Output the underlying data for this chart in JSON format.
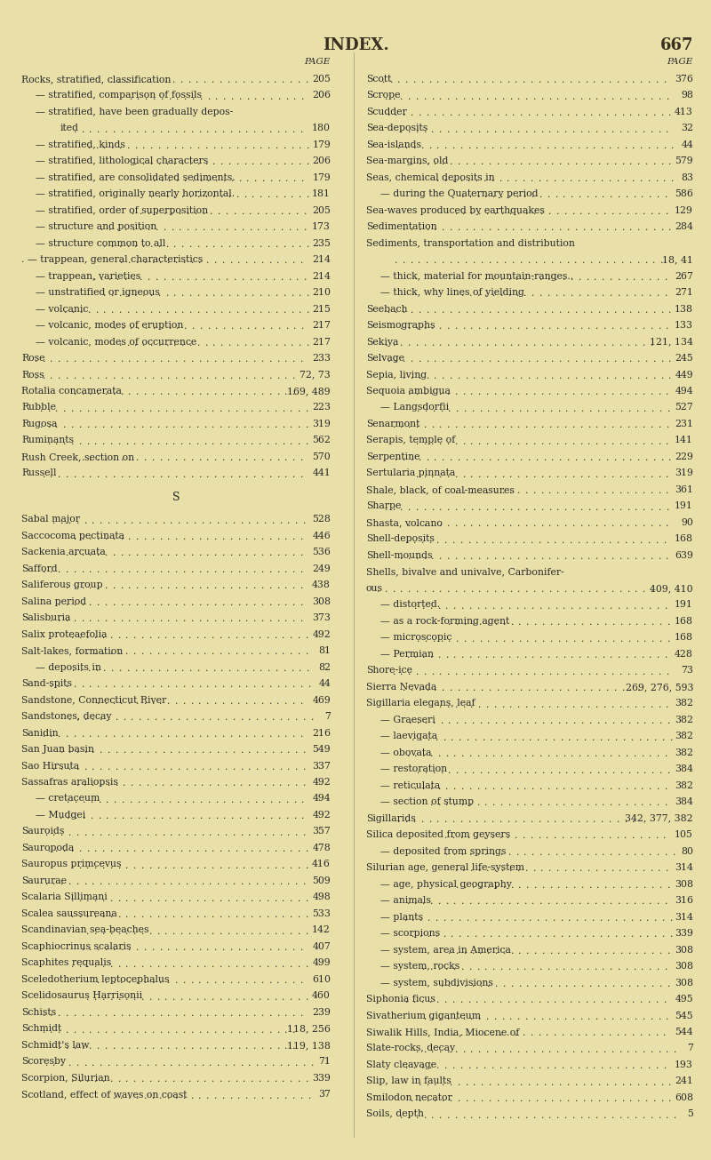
{
  "title": "INDEX.",
  "page_number": "667",
  "bg_color": "#e8e0a8",
  "text_color": "#2a2a2a",
  "title_color": "#3a3020",
  "left_column": [
    [
      "PAGE",
      "",
      true
    ],
    [
      "Rocks, stratified, classification",
      "205",
      false
    ],
    [
      "— stratified, comparison of fossils",
      "206",
      false
    ],
    [
      "— stratified, have been gradually depos-",
      "",
      false
    ],
    [
      "        ited",
      "180",
      false
    ],
    [
      "— stratified, kinds",
      "179",
      false
    ],
    [
      "— stratified, lithological characters",
      "206",
      false
    ],
    [
      "— stratified, are consolidated sediments.",
      "179",
      false
    ],
    [
      "— stratified, originally nearly horizontal.",
      "181",
      false
    ],
    [
      "— stratified, order of superposition",
      "205",
      false
    ],
    [
      "— structure and position",
      "173",
      false
    ],
    [
      "— structure common to all",
      "235",
      false
    ],
    [
      ". — trappean, general characteristics",
      "214",
      false
    ],
    [
      "— trappean, varieties",
      "214",
      false
    ],
    [
      "— unstratified or igneous",
      "210",
      false
    ],
    [
      "— volcanic",
      "215",
      false
    ],
    [
      "— volcanic, modes of eruption",
      "217",
      false
    ],
    [
      "— volcanic, modes of occurrence",
      "217",
      false
    ],
    [
      "Rose",
      "233",
      false
    ],
    [
      "Ross",
      "72, 73",
      false
    ],
    [
      "Rotalia concamerata",
      "169, 489",
      false
    ],
    [
      "Rubble",
      "223",
      false
    ],
    [
      "Rugosa",
      "319",
      false
    ],
    [
      "Ruminants",
      "562",
      false
    ],
    [
      "Rush Creek, section on",
      "570",
      false
    ],
    [
      "Russell",
      "441",
      false
    ],
    [
      "",
      "",
      false
    ],
    [
      "S",
      "",
      true
    ],
    [
      "",
      "",
      false
    ],
    [
      "Sabal major",
      "528",
      false
    ],
    [
      "Saccocoma pectinata",
      "446",
      false
    ],
    [
      "Sackenia arcuata",
      "536",
      false
    ],
    [
      "Safford",
      "249",
      false
    ],
    [
      "Saliferous group",
      "438",
      false
    ],
    [
      "Salina period",
      "308",
      false
    ],
    [
      "Salisburia",
      "373",
      false
    ],
    [
      "Salix proteaefolia",
      "492",
      false
    ],
    [
      "Salt-lakes, formation",
      "81",
      false
    ],
    [
      "— deposits in",
      "82",
      false
    ],
    [
      "Sand-spits",
      "44",
      false
    ],
    [
      "Sandstone, Connecticut River",
      "469",
      false
    ],
    [
      "Sandstones, decay",
      "7",
      false
    ],
    [
      "Sanidin",
      "216",
      false
    ],
    [
      "San Juan basin",
      "549",
      false
    ],
    [
      "Sao Hirsuta",
      "337",
      false
    ],
    [
      "Sassafras araliopsis",
      "492",
      false
    ],
    [
      "— cretaceum",
      "494",
      false
    ],
    [
      "— Mudgei",
      "492",
      false
    ],
    [
      "Sauroids",
      "357",
      false
    ],
    [
      "Sauropoda",
      "478",
      false
    ],
    [
      "Sauropus primcevus",
      "416",
      false
    ],
    [
      "Saururae",
      "509",
      false
    ],
    [
      "Scalaria Sillimani",
      "498",
      false
    ],
    [
      "Scalea saussureana",
      "533",
      false
    ],
    [
      "Scandinavian sea-beaches",
      "142",
      false
    ],
    [
      "Scaphiocrinus scalaris",
      "407",
      false
    ],
    [
      "Scaphites requalis",
      "499",
      false
    ],
    [
      "Sceledotherium leptocephalus",
      "610",
      false
    ],
    [
      "Scelidosaurus Harrisonii",
      "460",
      false
    ],
    [
      "Schists",
      "239",
      false
    ],
    [
      "Schmidt",
      "118, 256",
      false
    ],
    [
      "Schmidt's law",
      "119, 138",
      false
    ],
    [
      "Scoresby",
      "71",
      false
    ],
    [
      "Scorpion, Silurian",
      "339",
      false
    ],
    [
      "Scotland, effect of waves on coast",
      "37",
      false
    ]
  ],
  "right_column": [
    [
      "PAGE",
      "",
      true
    ],
    [
      "Scott",
      "376",
      false
    ],
    [
      "Scrope",
      "98",
      false
    ],
    [
      "Scudder",
      "413",
      false
    ],
    [
      "Sea-deposits",
      "32",
      false
    ],
    [
      "Sea-islands",
      "44",
      false
    ],
    [
      "Sea-margins, old",
      "579",
      false
    ],
    [
      "Seas, chemical deposits in",
      "83",
      false
    ],
    [
      "— during the Quaternary period",
      "586",
      false
    ],
    [
      "Sea-waves produced by earthquakes",
      "129",
      false
    ],
    [
      "Sedimentation",
      "284",
      false
    ],
    [
      "Sediments, transportation and distribution",
      "",
      false
    ],
    [
      "",
      "18, 41",
      false
    ],
    [
      "— thick, material for mountain-ranges..",
      "267",
      false
    ],
    [
      "— thick, why lines of yielding",
      "271",
      false
    ],
    [
      "Seebach",
      "138",
      false
    ],
    [
      "Seismographs",
      "133",
      false
    ],
    [
      "Sekiya",
      "121, 134",
      false
    ],
    [
      "Selvage",
      "245",
      false
    ],
    [
      "Sepia, living",
      "449",
      false
    ],
    [
      "Sequoia ambigua",
      "494",
      false
    ],
    [
      "— Langsdorfii",
      "527",
      false
    ],
    [
      "Senarmont",
      "231",
      false
    ],
    [
      "Serapis, temple of",
      "141",
      false
    ],
    [
      "Serpentine",
      "229",
      false
    ],
    [
      "Sertularia pinnata",
      "319",
      false
    ],
    [
      "Shale, black, of coal-measures",
      "361",
      false
    ],
    [
      "Sharpe",
      "191",
      false
    ],
    [
      "Shasta, volcano",
      "90",
      false
    ],
    [
      "Shell-deposits",
      "168",
      false
    ],
    [
      "Shell-mounds",
      "639",
      false
    ],
    [
      "Shells, bivalve and univalve, Carbonifer-",
      "",
      false
    ],
    [
      "ous",
      "409, 410",
      false
    ],
    [
      "— distorted.",
      "191",
      false
    ],
    [
      "— as a rock-forming agent",
      "168",
      false
    ],
    [
      "— microscopic",
      "168",
      false
    ],
    [
      "— Permian",
      "428",
      false
    ],
    [
      "Shore-ice",
      "73",
      false
    ],
    [
      "Sierra Nevada",
      "269, 276, 593",
      false
    ],
    [
      "Sigillaria elegans, leaf",
      "382",
      false
    ],
    [
      "— Graeseri",
      "382",
      false
    ],
    [
      "— laevigata",
      "382",
      false
    ],
    [
      "— obovata",
      "382",
      false
    ],
    [
      "— restoration",
      "384",
      false
    ],
    [
      "— reticulata",
      "382",
      false
    ],
    [
      "— section of stump",
      "384",
      false
    ],
    [
      "Sigillarids",
      "342, 377, 382",
      false
    ],
    [
      "Silica deposited from geysers",
      "105",
      false
    ],
    [
      "— deposited from springs",
      "80",
      false
    ],
    [
      "Silurian age, general life-system",
      "314",
      false
    ],
    [
      "— age, physical geography",
      "308",
      false
    ],
    [
      "— animals",
      "316",
      false
    ],
    [
      "— plants",
      "314",
      false
    ],
    [
      "— scorpions",
      "339",
      false
    ],
    [
      "— system, area in America",
      "308",
      false
    ],
    [
      "— system, rocks",
      "308",
      false
    ],
    [
      "— system, subdivisions",
      "308",
      false
    ],
    [
      "Siphonia ficus",
      "495",
      false
    ],
    [
      "Sivatherium giganteum",
      "545",
      false
    ],
    [
      "Siwalik Hills, India, Miocene of",
      "544",
      false
    ],
    [
      "Slate-rocks, decay",
      "7",
      false
    ],
    [
      "Slaty cleavage",
      "193",
      false
    ],
    [
      "Slip, law in faults",
      "241",
      false
    ],
    [
      "Smilodon necator",
      "608",
      false
    ],
    [
      "Soils, depth",
      "5",
      false
    ]
  ]
}
